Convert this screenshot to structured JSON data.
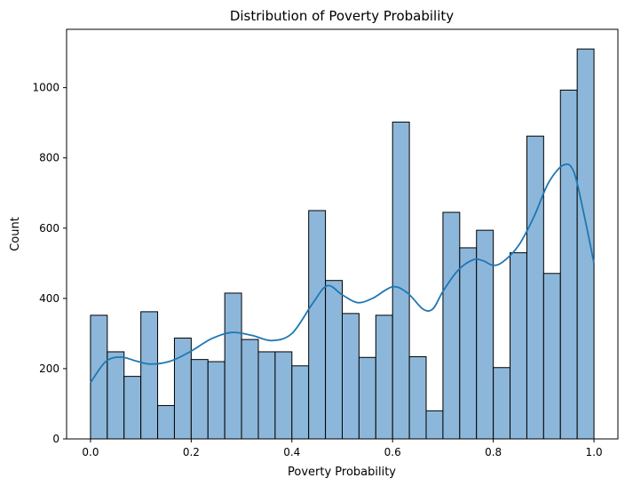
{
  "chart_data": {
    "type": "bar",
    "title": "Distribution of Poverty Probability",
    "xlabel": "Poverty Probability",
    "ylabel": "Count",
    "xlim": [
      -0.0475,
      1.0475
    ],
    "ylim": [
      0,
      1166
    ],
    "xticks": [
      0.0,
      0.2,
      0.4,
      0.6,
      0.8,
      1.0
    ],
    "xtick_labels": [
      "0.0",
      "0.2",
      "0.4",
      "0.6",
      "0.8",
      "1.0"
    ],
    "yticks": [
      0,
      200,
      400,
      600,
      800,
      1000
    ],
    "ytick_labels": [
      "0",
      "200",
      "400",
      "600",
      "800",
      "1000"
    ],
    "bins": {
      "start": 0.0,
      "end": 1.0,
      "count": 30
    },
    "series": [
      {
        "values": [
          352,
          248,
          178,
          362,
          95,
          287,
          226,
          220,
          415,
          283,
          248,
          248,
          208,
          650,
          451,
          357,
          232,
          352,
          902,
          234,
          80,
          645,
          544,
          594,
          203,
          530,
          862,
          471,
          993,
          1110
        ]
      }
    ],
    "kde": {
      "x": [
        0.0,
        0.03,
        0.06,
        0.09,
        0.12,
        0.16,
        0.2,
        0.24,
        0.28,
        0.32,
        0.36,
        0.4,
        0.44,
        0.47,
        0.5,
        0.53,
        0.56,
        0.6,
        0.63,
        0.66,
        0.68,
        0.7,
        0.73,
        0.76,
        0.78,
        0.8,
        0.82,
        0.85,
        0.88,
        0.91,
        0.94,
        0.96,
        0.98,
        1.0
      ],
      "y": [
        160,
        220,
        233,
        222,
        213,
        222,
        250,
        285,
        303,
        295,
        280,
        300,
        383,
        436,
        410,
        388,
        400,
        433,
        415,
        370,
        370,
        420,
        480,
        510,
        507,
        494,
        505,
        550,
        630,
        730,
        780,
        760,
        640,
        500
      ]
    },
    "colors": {
      "bar_fill": "#8db7da",
      "bar_edge": "#000000",
      "kde_line": "#1f77b4"
    }
  }
}
